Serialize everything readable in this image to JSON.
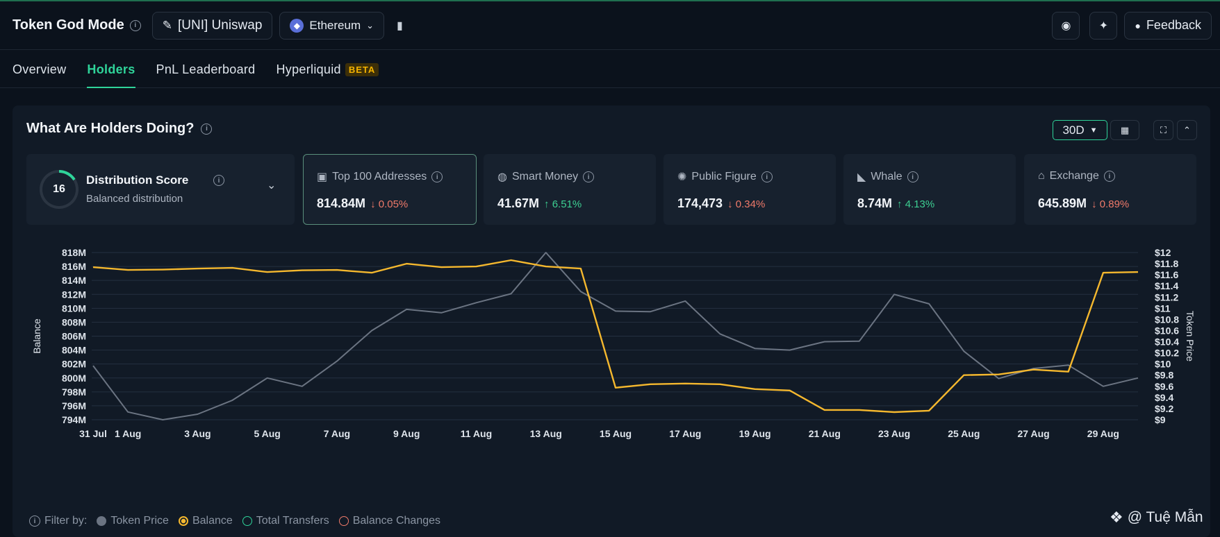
{
  "header": {
    "title": "Token God Mode",
    "token_label": "[UNI] Uniswap",
    "network_label": "Ethereum",
    "feedback_label": "Feedback"
  },
  "tabs": [
    {
      "label": "Overview",
      "active": false
    },
    {
      "label": "Holders",
      "active": true
    },
    {
      "label": "PnL Leaderboard",
      "active": false
    },
    {
      "label": "Hyperliquid",
      "active": false,
      "badge": "BETA"
    }
  ],
  "section": {
    "title": "What Are Holders Doing?",
    "period": "30D"
  },
  "distribution": {
    "score": "16",
    "label": "Distribution Score",
    "sub": "Balanced distribution"
  },
  "stats": [
    {
      "label": "Top 100 Addresses",
      "value": "814.84M",
      "change": "0.05%",
      "direction": "down",
      "icon": "money-icon"
    },
    {
      "label": "Smart Money",
      "value": "41.67M",
      "change": "6.51%",
      "direction": "up",
      "icon": "brain-icon"
    },
    {
      "label": "Public Figure",
      "value": "174,473",
      "change": "0.34%",
      "direction": "down",
      "icon": "figure-icon"
    },
    {
      "label": "Whale",
      "value": "8.74M",
      "change": "4.13%",
      "direction": "up",
      "icon": "whale-icon"
    },
    {
      "label": "Exchange",
      "value": "645.89M",
      "change": "0.89%",
      "direction": "down",
      "icon": "bank-icon"
    }
  ],
  "chart_data": {
    "type": "line",
    "x": [
      "31 Jul",
      "1 Aug",
      "2 Aug",
      "3 Aug",
      "4 Aug",
      "5 Aug",
      "6 Aug",
      "7 Aug",
      "8 Aug",
      "9 Aug",
      "10 Aug",
      "11 Aug",
      "12 Aug",
      "13 Aug",
      "14 Aug",
      "15 Aug",
      "16 Aug",
      "17 Aug",
      "18 Aug",
      "19 Aug",
      "20 Aug",
      "21 Aug",
      "22 Aug",
      "23 Aug",
      "24 Aug",
      "25 Aug",
      "26 Aug",
      "27 Aug",
      "28 Aug",
      "29 Aug",
      "30 Aug"
    ],
    "x_tick_labels": [
      "31 Jul",
      "1 Aug",
      "3 Aug",
      "5 Aug",
      "7 Aug",
      "9 Aug",
      "11 Aug",
      "13 Aug",
      "15 Aug",
      "17 Aug",
      "19 Aug",
      "21 Aug",
      "23 Aug",
      "25 Aug",
      "27 Aug",
      "29 Aug"
    ],
    "ylabel": "Balance",
    "y2label": "Token Price",
    "ylim": [
      794,
      818
    ],
    "y2lim": [
      9,
      12
    ],
    "y_ticks": [
      "794M",
      "796M",
      "798M",
      "800M",
      "802M",
      "804M",
      "806M",
      "808M",
      "810M",
      "812M",
      "814M",
      "816M",
      "818M"
    ],
    "y2_ticks": [
      "$9",
      "$9.2",
      "$9.4",
      "$9.6",
      "$9.8",
      "$10",
      "$10.2",
      "$10.4",
      "$10.6",
      "$10.8",
      "$11",
      "$11.2",
      "$11.4",
      "$11.6",
      "$11.8",
      "$12"
    ],
    "grid": true,
    "series": [
      {
        "name": "Token Price",
        "axis": "right",
        "color": "#6b7482",
        "values": [
          9.97,
          9.14,
          9.0,
          9.1,
          9.35,
          9.75,
          9.6,
          10.05,
          10.6,
          10.98,
          10.92,
          11.1,
          11.26,
          12.0,
          11.3,
          10.95,
          10.94,
          11.13,
          10.54,
          10.28,
          10.25,
          10.4,
          10.41,
          11.25,
          11.08,
          10.23,
          9.74,
          9.92,
          9.98,
          9.6,
          9.75
        ]
      },
      {
        "name": "Balance",
        "axis": "left",
        "color": "#f5b82e",
        "values": [
          815.9,
          815.5,
          815.55,
          815.7,
          815.8,
          815.2,
          815.45,
          815.5,
          815.1,
          816.4,
          815.9,
          816.0,
          816.9,
          816.0,
          815.7,
          798.6,
          799.1,
          799.2,
          799.1,
          798.4,
          798.2,
          795.4,
          795.4,
          795.1,
          795.3,
          800.4,
          800.5,
          801.2,
          800.9,
          815.1,
          815.2
        ]
      }
    ]
  },
  "filter": {
    "label": "Filter by:",
    "items": [
      {
        "label": "Token Price",
        "color": "#6b7482",
        "filled": true
      },
      {
        "label": "Balance",
        "color": "#f5b82e",
        "filled": false
      },
      {
        "label": "Total Transfers",
        "color": "#2fd49a",
        "filled": false
      },
      {
        "label": "Balance Changes",
        "color": "#f07a6a",
        "filled": false
      }
    ]
  },
  "watermark": "@ Tuệ Mẫn"
}
